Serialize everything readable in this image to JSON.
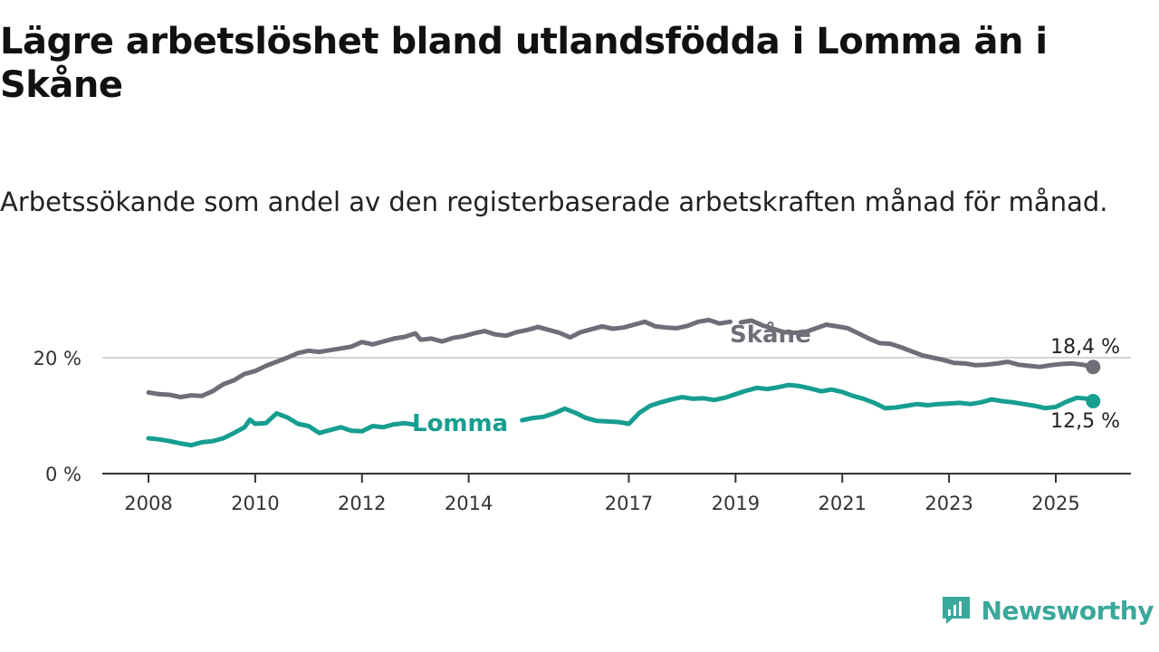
{
  "header": {
    "title": "Lägre arbetslöshet bland utlandsfödda i Lomma än i Skåne",
    "subtitle": "Arbetssökande som andel av den registerbaserade arbetskraften månad för månad."
  },
  "brand": {
    "name": "Newsworthy",
    "icon": "newsworthy-logo-icon",
    "color": "#3aa89b"
  },
  "chart_data": {
    "type": "line",
    "title": "Lägre arbetslöshet bland utlandsfödda i Lomma än i Skåne",
    "subtitle": "Arbetssökande som andel av den registerbaserade arbetskraften månad för månad.",
    "x_ticks": [
      "2008",
      "2010",
      "2012",
      "2014",
      "2017",
      "2019",
      "2021",
      "2023",
      "2025"
    ],
    "y_ticks": [
      {
        "value": 0,
        "label": "0 %"
      },
      {
        "value": 20,
        "label": "20 %"
      }
    ],
    "ylim": [
      0,
      29
    ],
    "xlim": [
      2007.2,
      2026.4
    ],
    "grid": "horizontal line at 20",
    "legend": "direct labels",
    "series": [
      {
        "name": "Skåne",
        "color": "#6f6e78",
        "end_label": "18,4 %",
        "end_value": 18.4,
        "gaps_after_year": [
          2018.9
        ],
        "points": [
          [
            2008.0,
            14.0
          ],
          [
            2008.2,
            13.7
          ],
          [
            2008.4,
            13.6
          ],
          [
            2008.6,
            13.2
          ],
          [
            2008.8,
            13.5
          ],
          [
            2009.0,
            13.4
          ],
          [
            2009.2,
            14.2
          ],
          [
            2009.4,
            15.4
          ],
          [
            2009.6,
            16.1
          ],
          [
            2009.8,
            17.2
          ],
          [
            2010.0,
            17.7
          ],
          [
            2010.2,
            18.6
          ],
          [
            2010.4,
            19.3
          ],
          [
            2010.6,
            20.0
          ],
          [
            2010.8,
            20.8
          ],
          [
            2011.0,
            21.2
          ],
          [
            2011.2,
            21.0
          ],
          [
            2011.4,
            21.3
          ],
          [
            2011.6,
            21.6
          ],
          [
            2011.8,
            21.9
          ],
          [
            2012.0,
            22.7
          ],
          [
            2012.2,
            22.3
          ],
          [
            2012.4,
            22.8
          ],
          [
            2012.6,
            23.3
          ],
          [
            2012.8,
            23.6
          ],
          [
            2013.0,
            24.2
          ],
          [
            2013.1,
            23.1
          ],
          [
            2013.3,
            23.3
          ],
          [
            2013.5,
            22.8
          ],
          [
            2013.7,
            23.4
          ],
          [
            2013.9,
            23.7
          ],
          [
            2014.1,
            24.2
          ],
          [
            2014.3,
            24.6
          ],
          [
            2014.5,
            24.0
          ],
          [
            2014.7,
            23.8
          ],
          [
            2014.9,
            24.4
          ],
          [
            2015.1,
            24.8
          ],
          [
            2015.3,
            25.3
          ],
          [
            2015.5,
            24.8
          ],
          [
            2015.7,
            24.3
          ],
          [
            2015.9,
            23.5
          ],
          [
            2016.1,
            24.4
          ],
          [
            2016.3,
            24.9
          ],
          [
            2016.5,
            25.4
          ],
          [
            2016.7,
            25.0
          ],
          [
            2016.9,
            25.2
          ],
          [
            2017.1,
            25.7
          ],
          [
            2017.3,
            26.2
          ],
          [
            2017.5,
            25.4
          ],
          [
            2017.7,
            25.2
          ],
          [
            2017.9,
            25.1
          ],
          [
            2018.1,
            25.5
          ],
          [
            2018.3,
            26.2
          ],
          [
            2018.5,
            26.5
          ],
          [
            2018.7,
            25.9
          ],
          [
            2018.9,
            26.2
          ],
          [
            2019.1,
            26.1
          ],
          [
            2019.3,
            26.4
          ],
          [
            2019.5,
            25.6
          ],
          [
            2019.7,
            25.0
          ],
          [
            2019.9,
            24.4
          ],
          [
            2020.1,
            24.3
          ],
          [
            2020.3,
            24.4
          ],
          [
            2020.7,
            25.7
          ],
          [
            2020.9,
            25.4
          ],
          [
            2021.1,
            25.1
          ],
          [
            2021.3,
            24.2
          ],
          [
            2021.5,
            23.3
          ],
          [
            2021.7,
            22.5
          ],
          [
            2021.9,
            22.4
          ],
          [
            2022.1,
            21.8
          ],
          [
            2022.3,
            21.1
          ],
          [
            2022.5,
            20.4
          ],
          [
            2022.7,
            20.0
          ],
          [
            2022.9,
            19.6
          ],
          [
            2023.1,
            19.1
          ],
          [
            2023.3,
            19.0
          ],
          [
            2023.5,
            18.7
          ],
          [
            2023.7,
            18.8
          ],
          [
            2023.9,
            19.0
          ],
          [
            2024.1,
            19.3
          ],
          [
            2024.3,
            18.8
          ],
          [
            2024.5,
            18.6
          ],
          [
            2024.7,
            18.4
          ],
          [
            2024.9,
            18.7
          ],
          [
            2025.1,
            18.9
          ],
          [
            2025.3,
            19.0
          ],
          [
            2025.5,
            18.8
          ],
          [
            2025.7,
            18.4
          ]
        ]
      },
      {
        "name": "Lomma",
        "color": "#169e90",
        "end_label": "12,5 %",
        "end_value": 12.5,
        "gaps_after_year": [
          2013.0
        ],
        "points": [
          [
            2008.0,
            6.1
          ],
          [
            2008.2,
            5.9
          ],
          [
            2008.4,
            5.6
          ],
          [
            2008.6,
            5.2
          ],
          [
            2008.8,
            4.9
          ],
          [
            2009.0,
            5.4
          ],
          [
            2009.2,
            5.6
          ],
          [
            2009.4,
            6.1
          ],
          [
            2009.6,
            7.0
          ],
          [
            2009.8,
            8.0
          ],
          [
            2009.9,
            9.3
          ],
          [
            2010.0,
            8.6
          ],
          [
            2010.2,
            8.7
          ],
          [
            2010.4,
            10.4
          ],
          [
            2010.6,
            9.7
          ],
          [
            2010.8,
            8.6
          ],
          [
            2011.0,
            8.2
          ],
          [
            2011.2,
            7.0
          ],
          [
            2011.4,
            7.5
          ],
          [
            2011.6,
            8.0
          ],
          [
            2011.8,
            7.4
          ],
          [
            2012.0,
            7.3
          ],
          [
            2012.2,
            8.2
          ],
          [
            2012.4,
            8.0
          ],
          [
            2012.6,
            8.5
          ],
          [
            2012.8,
            8.7
          ],
          [
            2013.0,
            8.4
          ],
          [
            2015.0,
            9.2
          ],
          [
            2015.2,
            9.6
          ],
          [
            2015.4,
            9.8
          ],
          [
            2015.6,
            10.4
          ],
          [
            2015.8,
            11.2
          ],
          [
            2016.0,
            10.5
          ],
          [
            2016.2,
            9.6
          ],
          [
            2016.4,
            9.1
          ],
          [
            2016.6,
            9.0
          ],
          [
            2016.8,
            8.9
          ],
          [
            2017.0,
            8.6
          ],
          [
            2017.2,
            10.5
          ],
          [
            2017.4,
            11.7
          ],
          [
            2017.6,
            12.3
          ],
          [
            2017.8,
            12.8
          ],
          [
            2018.0,
            13.2
          ],
          [
            2018.2,
            12.9
          ],
          [
            2018.4,
            13.0
          ],
          [
            2018.6,
            12.7
          ],
          [
            2018.8,
            13.1
          ],
          [
            2019.0,
            13.7
          ],
          [
            2019.2,
            14.3
          ],
          [
            2019.4,
            14.8
          ],
          [
            2019.6,
            14.6
          ],
          [
            2019.8,
            14.9
          ],
          [
            2020.0,
            15.3
          ],
          [
            2020.2,
            15.1
          ],
          [
            2020.4,
            14.7
          ],
          [
            2020.6,
            14.2
          ],
          [
            2020.8,
            14.5
          ],
          [
            2021.0,
            14.1
          ],
          [
            2021.2,
            13.4
          ],
          [
            2021.4,
            12.9
          ],
          [
            2021.6,
            12.2
          ],
          [
            2021.8,
            11.3
          ],
          [
            2022.0,
            11.4
          ],
          [
            2022.2,
            11.7
          ],
          [
            2022.4,
            12.0
          ],
          [
            2022.6,
            11.8
          ],
          [
            2022.8,
            12.0
          ],
          [
            2023.0,
            12.1
          ],
          [
            2023.2,
            12.2
          ],
          [
            2023.4,
            12.0
          ],
          [
            2023.6,
            12.3
          ],
          [
            2023.8,
            12.8
          ],
          [
            2024.0,
            12.5
          ],
          [
            2024.2,
            12.3
          ],
          [
            2024.4,
            12.0
          ],
          [
            2024.6,
            11.7
          ],
          [
            2024.8,
            11.3
          ],
          [
            2025.0,
            11.5
          ],
          [
            2025.2,
            12.4
          ],
          [
            2025.4,
            13.1
          ],
          [
            2025.6,
            12.9
          ],
          [
            2025.7,
            12.5
          ]
        ]
      }
    ]
  }
}
